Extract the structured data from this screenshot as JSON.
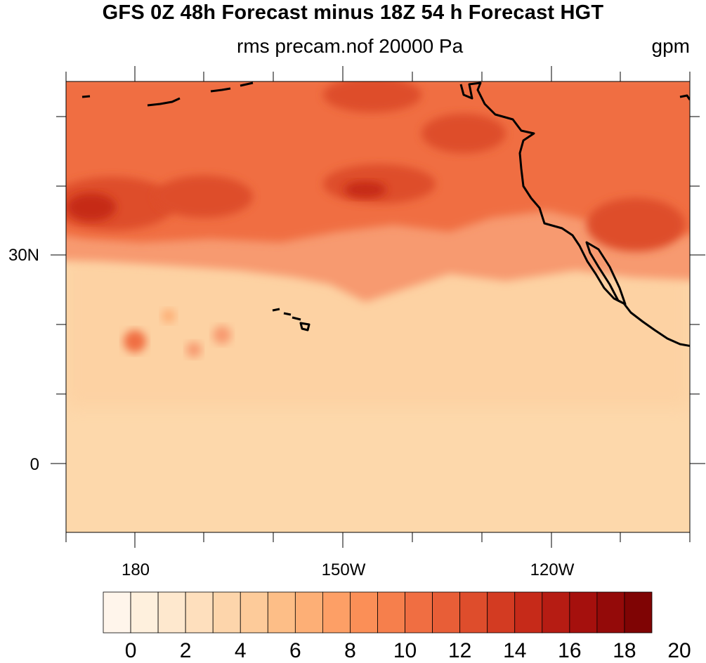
{
  "title": "GFS 0Z 48h Forecast minus 18Z 54 h Forecast HGT",
  "subtitle_center": "rms precam.nof 20000 Pa",
  "subtitle_right": "gpm",
  "lat_labels": [
    "30N",
    "0"
  ],
  "lon_labels": [
    "180",
    "150W",
    "120W"
  ],
  "colorbar": {
    "labels": [
      "0",
      "2",
      "4",
      "6",
      "8",
      "10",
      "12",
      "14",
      "16",
      "18",
      "20"
    ],
    "colors": [
      "#fff5eb",
      "#fef0dd",
      "#fee8ce",
      "#fedfbd",
      "#fdd5ab",
      "#fdcb9a",
      "#fdbe87",
      "#fdaf76",
      "#fd9f66",
      "#fb8f57",
      "#f67f4c",
      "#f06e42",
      "#e85e37",
      "#de4d2c",
      "#d33b22",
      "#c62a19",
      "#b61c13",
      "#a5100d",
      "#940a09",
      "#7f0404"
    ]
  },
  "map": {
    "background_color": "#fdd8ab",
    "band_colors": [
      "#f79a70",
      "#f06e42",
      "#de4d2c",
      "#c62a19"
    ],
    "coastline_color": "#000000"
  }
}
